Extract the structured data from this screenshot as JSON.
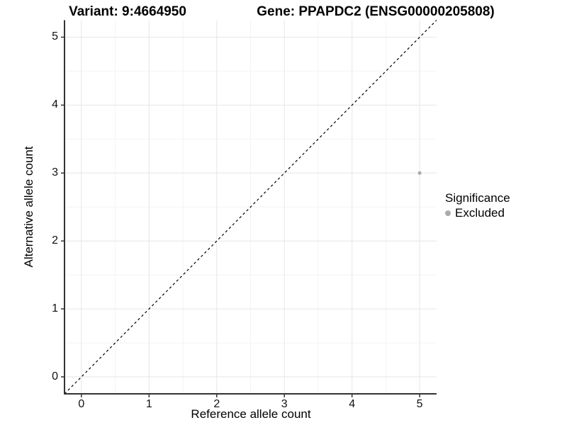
{
  "chart_data": {
    "type": "scatter",
    "title_left": "Variant: 9:4664950",
    "title_right": "Gene: PPAPDC2 (ENSG00000205808)",
    "xlabel": "Reference allele count",
    "ylabel": "Alternative allele count",
    "xlim": [
      -0.25,
      5.25
    ],
    "ylim": [
      -0.25,
      5.25
    ],
    "x_ticks": [
      0,
      1,
      2,
      3,
      4,
      5
    ],
    "y_ticks": [
      0,
      1,
      2,
      3,
      4,
      5
    ],
    "minor_ticks": [
      0.5,
      1.5,
      2.5,
      3.5,
      4.5
    ],
    "grid": "major and minor gridlines on, white panel",
    "reference_line": {
      "kind": "identity y=x",
      "style": "dashed",
      "color": "#000000"
    },
    "series": [
      {
        "name": "Excluded",
        "color": "#ABABAB",
        "points": [
          {
            "x": 5,
            "y": 3
          }
        ]
      }
    ],
    "legend": {
      "title": "Significance",
      "position": "right",
      "items": [
        {
          "label": "Excluded",
          "color": "#ABABAB"
        }
      ]
    }
  },
  "colors": {
    "background": "#ffffff",
    "grid_major": "#e6e6e6",
    "grid_minor": "#f3f3f3",
    "axis_line": "#333333",
    "tick_mark": "#333333",
    "dashed_line": "#000000",
    "point": "#ABABAB",
    "text": "#000000"
  }
}
